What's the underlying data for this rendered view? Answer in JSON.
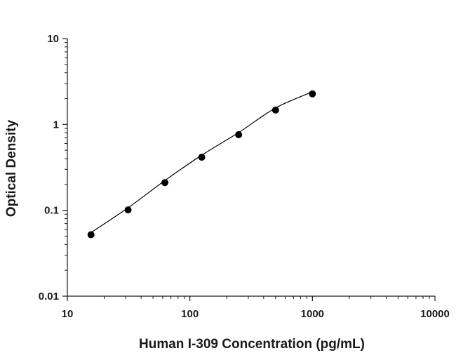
{
  "chart_data": {
    "type": "scatter",
    "title": "",
    "xlabel": "Human I-309 Concentration (pg/mL)",
    "ylabel": "Optical Density",
    "x_scale": "log",
    "y_scale": "log",
    "xlim": [
      10,
      10000
    ],
    "ylim": [
      0.01,
      10
    ],
    "x_ticks": [
      "10",
      "100",
      "1000",
      "10000"
    ],
    "y_ticks": [
      "10",
      "1",
      "0.1",
      "0.01"
    ],
    "grid": false,
    "legend": "none",
    "series": [
      {
        "x": [
          15.6,
          31.3,
          62.5,
          125,
          250,
          500,
          1000
        ],
        "y": [
          0.052,
          0.101,
          0.21,
          0.415,
          0.76,
          1.47,
          2.27
        ]
      }
    ],
    "fit_curve": {
      "type": "4PL",
      "x_range": [
        15.6,
        1000
      ]
    },
    "colors": {
      "marker": "#000000",
      "line": "#000000",
      "axis": "#1a1a1a"
    }
  }
}
